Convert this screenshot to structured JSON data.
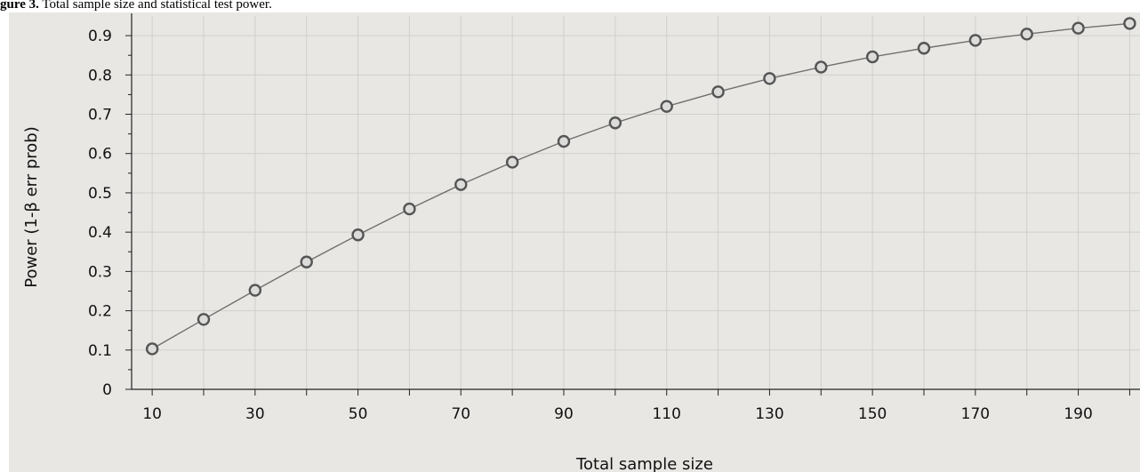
{
  "caption": {
    "label": "gure 3.",
    "text": "Total sample size and statistical test power."
  },
  "chart_data": {
    "type": "line",
    "title": "",
    "xlabel": "Total sample size",
    "ylabel": "Power (1-β err prob)",
    "xlim": [
      6,
      202
    ],
    "ylim": [
      0,
      0.95
    ],
    "x_tick_labels": [
      "10",
      "30",
      "50",
      "70",
      "90",
      "110",
      "130",
      "150",
      "170",
      "190"
    ],
    "y_tick_labels": [
      "0",
      "0.1",
      "0.2",
      "0.3",
      "0.4",
      "0.5",
      "0.6",
      "0.7",
      "0.8",
      "0.9"
    ],
    "grid": true,
    "series": [
      {
        "x": [
          10,
          20,
          30,
          40,
          50,
          60,
          70,
          80,
          90,
          100,
          110,
          120,
          130,
          140,
          150,
          160,
          170,
          180,
          190,
          200
        ],
        "y": [
          0.103,
          0.178,
          0.252,
          0.324,
          0.393,
          0.459,
          0.521,
          0.578,
          0.631,
          0.678,
          0.72,
          0.757,
          0.791,
          0.82,
          0.846,
          0.868,
          0.888,
          0.904,
          0.919,
          0.931
        ]
      }
    ],
    "colors": {
      "plot_background": "#e8e7e4",
      "line": "#707070",
      "marker_stroke": "#555555",
      "marker_fill": "#dcdcda",
      "grid": "#cfcfcc",
      "axis": "#222222"
    }
  }
}
